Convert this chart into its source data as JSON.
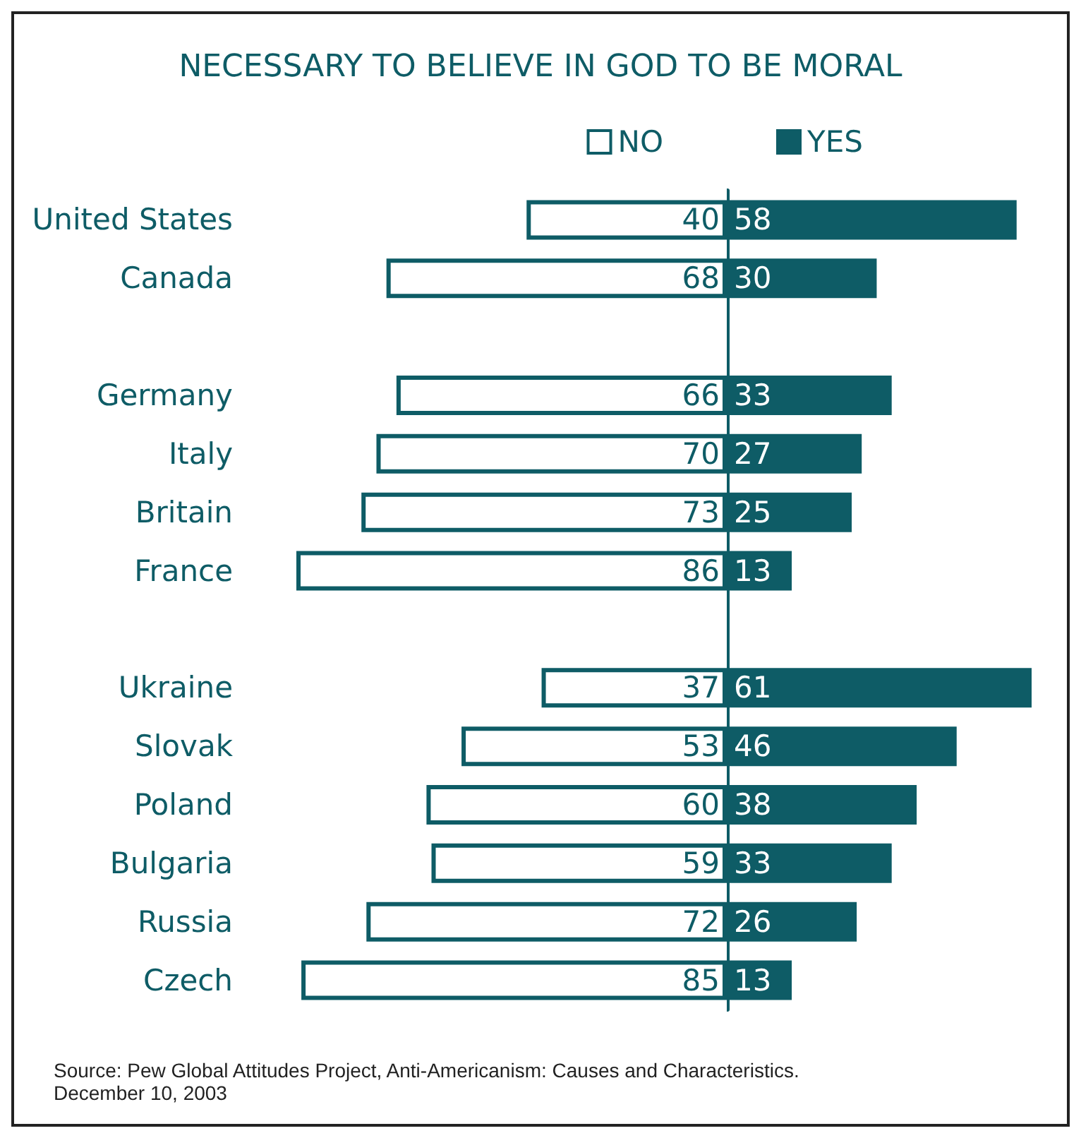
{
  "chart_data": [
    {
      "type": "bar",
      "orientation": "horizontal",
      "title": "NECESSARY TO BELIEVE IN GOD TO BE MORAL",
      "categories": [
        "United States",
        "Canada",
        null,
        "Germany",
        "Italy",
        "Britain",
        "France",
        null,
        "Ukraine",
        "Slovak",
        "Poland",
        "Bulgaria",
        "Russia",
        "Czech"
      ],
      "series": [
        {
          "name": "NO",
          "color": "#ffffff",
          "values": [
            40,
            68,
            null,
            66,
            70,
            73,
            86,
            null,
            37,
            53,
            60,
            59,
            72,
            85
          ]
        }
      ],
      "tick_labels": "y",
      "data_labels": true,
      "legend": "top right",
      "annotations": [
        "Source: Pew Global Attitudes Project, Anti-Americanism: Causes and Characteristics.",
        "December 10, 2003"
      ]
    },
    {
      "type": "bar",
      "orientation": "horizontal",
      "categories": [
        null,
        null,
        null,
        null,
        null,
        null,
        null,
        null,
        null,
        null,
        null,
        null,
        null,
        null
      ],
      "series": [
        {
          "name": "YES",
          "color": "#0e5c66",
          "values": [
            58,
            30,
            null,
            33,
            27,
            25,
            13,
            null,
            61,
            46,
            38,
            33,
            26,
            13
          ]
        }
      ],
      "tick_labels": false,
      "data_labels": true,
      "legend": "top left"
    }
  ]
}
